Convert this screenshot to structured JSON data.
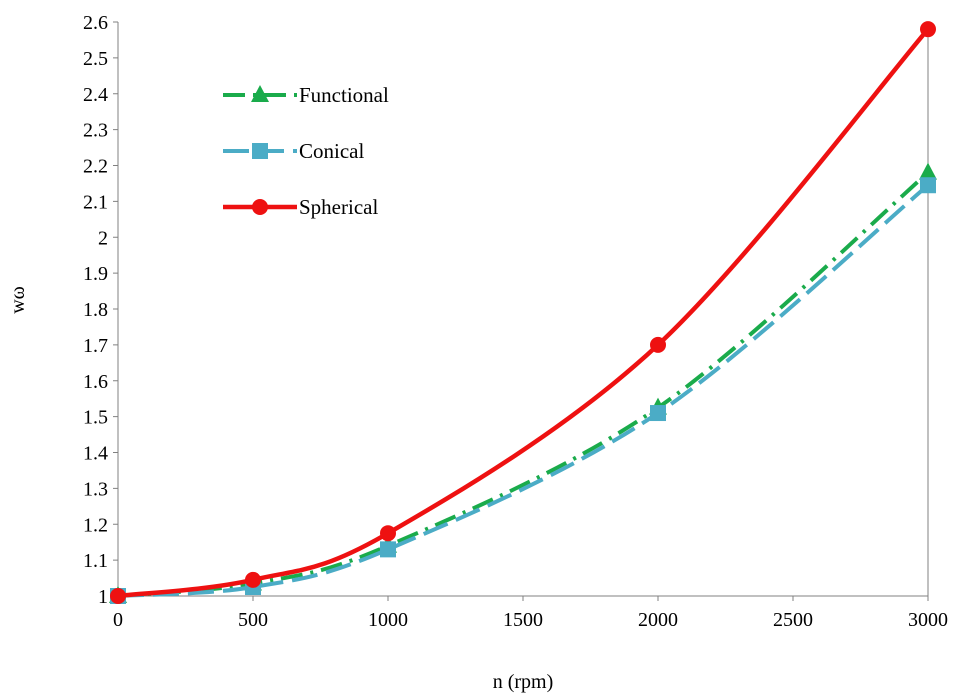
{
  "chart_data": {
    "type": "line",
    "title": "",
    "xlabel": "n (rpm)",
    "ylabel": "wω",
    "x_ticks": [
      "0",
      "500",
      "1000",
      "1500",
      "2000",
      "2500",
      "3000"
    ],
    "y_ticks": [
      "1",
      "1.1",
      "1.2",
      "1.3",
      "1.4",
      "1.5",
      "1.6",
      "1.7",
      "1.8",
      "1.9",
      "2",
      "2.1",
      "2.2",
      "2.3",
      "2.4",
      "2.5",
      "2.6"
    ],
    "xlim": [
      0,
      3000
    ],
    "ylim": [
      1,
      2.6
    ],
    "grid": false,
    "legend_position": "top-left",
    "series": [
      {
        "name": "Functional",
        "color": "#1aab4b",
        "line_style": "dash-dot",
        "marker": "triangle",
        "x": [
          0,
          500,
          1000,
          2000,
          3000
        ],
        "y": [
          1.0,
          1.035,
          1.14,
          1.525,
          2.18
        ]
      },
      {
        "name": "Conical",
        "color": "#4bacc6",
        "line_style": "dashed",
        "marker": "square",
        "x": [
          0,
          500,
          1000,
          2000,
          3000
        ],
        "y": [
          1.0,
          1.025,
          1.13,
          1.51,
          2.145
        ]
      },
      {
        "name": "Spherical",
        "color": "#ee1111",
        "line_style": "solid",
        "marker": "circle",
        "x": [
          0,
          500,
          1000,
          2000,
          3000
        ],
        "y": [
          1.0,
          1.045,
          1.175,
          1.7,
          2.58
        ]
      }
    ]
  }
}
